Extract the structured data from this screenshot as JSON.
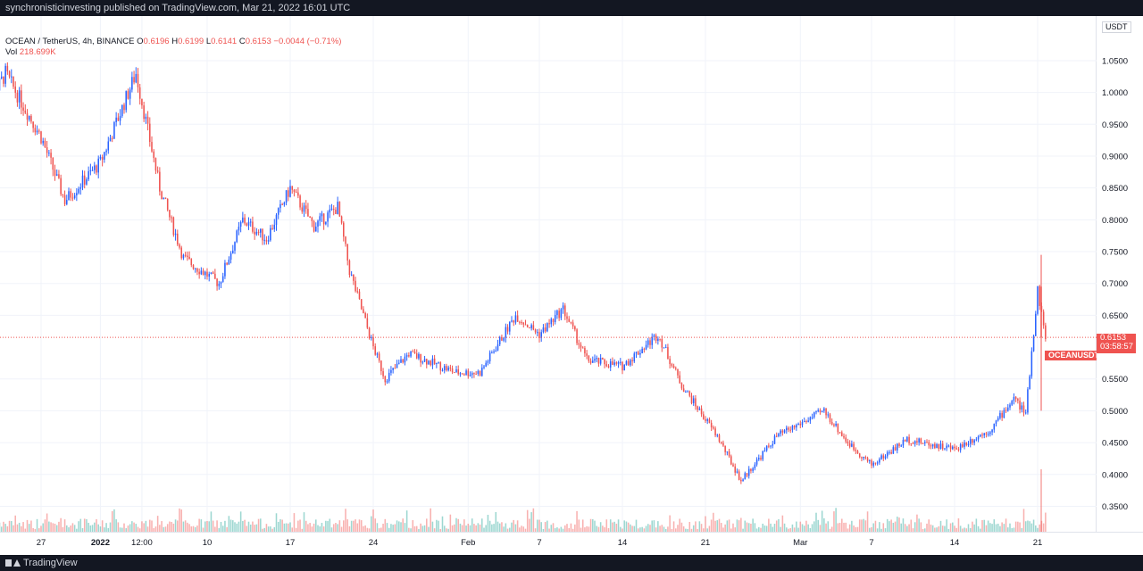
{
  "header": {
    "published": "synchronisticinvesting published on TradingView.com, Mar 21, 2022 16:01 UTC"
  },
  "legend": {
    "symbol": "OCEAN / TetherUS, 4h, BINANCE",
    "o_label": "O",
    "o": "0.6196",
    "h_label": "H",
    "h": "0.6199",
    "l_label": "L",
    "l": "0.6141",
    "c_label": "C",
    "c": "0.6153",
    "change": "−0.0044 (−0.71%)",
    "vol_label": "Vol",
    "vol": "218.699K"
  },
  "price_axis": {
    "unit": "USDT",
    "ticks": [
      "1.0500",
      "1.0000",
      "0.9500",
      "0.9000",
      "0.8500",
      "0.8000",
      "0.7500",
      "0.7000",
      "0.6500",
      "0.5500",
      "0.5000",
      "0.4500",
      "0.4000",
      "0.3500"
    ]
  },
  "last_price": {
    "symbol": "OCEANUSDT",
    "price": "0.6153",
    "countdown": "03:58:57"
  },
  "time_axis": {
    "ticks": [
      "27",
      "2022",
      "12:00",
      "10",
      "17",
      "24",
      "Feb",
      "7",
      "14",
      "21",
      "Mar",
      "7",
      "14",
      "21"
    ]
  },
  "footer": {
    "brand": "TradingView"
  },
  "colors": {
    "up": "#2962ff",
    "down": "#ef5350",
    "up_vol": "#26a69a",
    "down_vol": "#ef5350"
  },
  "chart_data": {
    "type": "candlestick",
    "interval": "4h",
    "ylim": [
      0.31,
      1.12
    ],
    "y_scale": "linear",
    "keypoints": [
      {
        "x": "Dec 22",
        "price": 0.96
      },
      {
        "x": "Dec 24",
        "price": 1.03
      },
      {
        "x": "Dec 27",
        "price": 0.93
      },
      {
        "x": "Dec 29",
        "price": 0.83
      },
      {
        "x": "Jan 1",
        "price": 0.89
      },
      {
        "x": "Jan 4",
        "price": 1.03
      },
      {
        "x": "Jan 6",
        "price": 0.85
      },
      {
        "x": "Jan 8",
        "price": 0.74
      },
      {
        "x": "Jan 11",
        "price": 0.7
      },
      {
        "x": "Jan 13",
        "price": 0.8
      },
      {
        "x": "Jan 15",
        "price": 0.77
      },
      {
        "x": "Jan 17",
        "price": 0.85
      },
      {
        "x": "Jan 19",
        "price": 0.79
      },
      {
        "x": "Jan 21",
        "price": 0.82
      },
      {
        "x": "Jan 22",
        "price": 0.72
      },
      {
        "x": "Jan 24",
        "price": 0.6
      },
      {
        "x": "Jan 25",
        "price": 0.55
      },
      {
        "x": "Jan 27",
        "price": 0.59
      },
      {
        "x": "Jan 31",
        "price": 0.56
      },
      {
        "x": "Feb 2",
        "price": 0.56
      },
      {
        "x": "Feb 5",
        "price": 0.65
      },
      {
        "x": "Feb 7",
        "price": 0.62
      },
      {
        "x": "Feb 9",
        "price": 0.66
      },
      {
        "x": "Feb 11",
        "price": 0.58
      },
      {
        "x": "Feb 14",
        "price": 0.57
      },
      {
        "x": "Feb 17",
        "price": 0.62
      },
      {
        "x": "Feb 19",
        "price": 0.54
      },
      {
        "x": "Feb 22",
        "price": 0.46
      },
      {
        "x": "Feb 24",
        "price": 0.39
      },
      {
        "x": "Feb 27",
        "price": 0.46
      },
      {
        "x": "Mar 3",
        "price": 0.5
      },
      {
        "x": "Mar 5",
        "price": 0.45
      },
      {
        "x": "Mar 7",
        "price": 0.415
      },
      {
        "x": "Mar 10",
        "price": 0.455
      },
      {
        "x": "Mar 14",
        "price": 0.44
      },
      {
        "x": "Mar 17",
        "price": 0.47
      },
      {
        "x": "Mar 19",
        "price": 0.52
      },
      {
        "x": "Mar 20",
        "price": 0.495
      },
      {
        "x": "Mar 21",
        "price": 0.69
      },
      {
        "x": "Mar 21 16:00",
        "price": 0.6153
      }
    ]
  }
}
